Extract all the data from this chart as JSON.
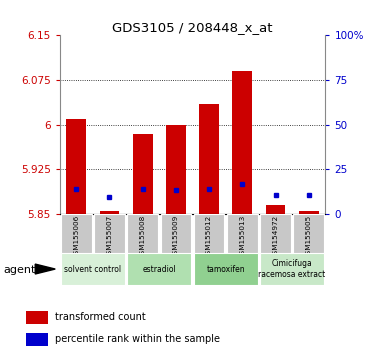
{
  "title": "GDS3105 / 208448_x_at",
  "samples": [
    "GSM155006",
    "GSM155007",
    "GSM155008",
    "GSM155009",
    "GSM155012",
    "GSM155013",
    "GSM154972",
    "GSM155005"
  ],
  "red_values": [
    6.01,
    5.855,
    5.985,
    6.0,
    6.035,
    6.09,
    5.865,
    5.855
  ],
  "blue_values": [
    5.893,
    5.878,
    5.893,
    5.89,
    5.893,
    5.9,
    5.882,
    5.883
  ],
  "ymin": 5.85,
  "ymax": 6.15,
  "y_ticks": [
    5.85,
    5.925,
    6.0,
    6.075,
    6.15
  ],
  "y_tick_labels": [
    "5.85",
    "5.925",
    "6",
    "6.075",
    "6.15"
  ],
  "right_y_ticks": [
    0,
    25,
    50,
    75,
    100
  ],
  "right_y_tick_labels": [
    "0",
    "25",
    "50",
    "75",
    "100%"
  ],
  "groups": [
    {
      "label": "solvent control",
      "indices": [
        0,
        1
      ],
      "color": "#d8f0d8"
    },
    {
      "label": "estradiol",
      "indices": [
        2,
        3
      ],
      "color": "#b0e0b0"
    },
    {
      "label": "tamoxifen",
      "indices": [
        4,
        5
      ],
      "color": "#90d090"
    },
    {
      "label": "Cimicifuga\nracemosa extract",
      "indices": [
        6,
        7
      ],
      "color": "#c8e8c8"
    }
  ],
  "bar_color": "#cc0000",
  "blue_color": "#0000cc",
  "bar_width": 0.6,
  "agent_label": "agent",
  "legend_red": "transformed count",
  "legend_blue": "percentile rank within the sample",
  "tick_color_left": "#cc0000",
  "tick_color_right": "#0000cc"
}
